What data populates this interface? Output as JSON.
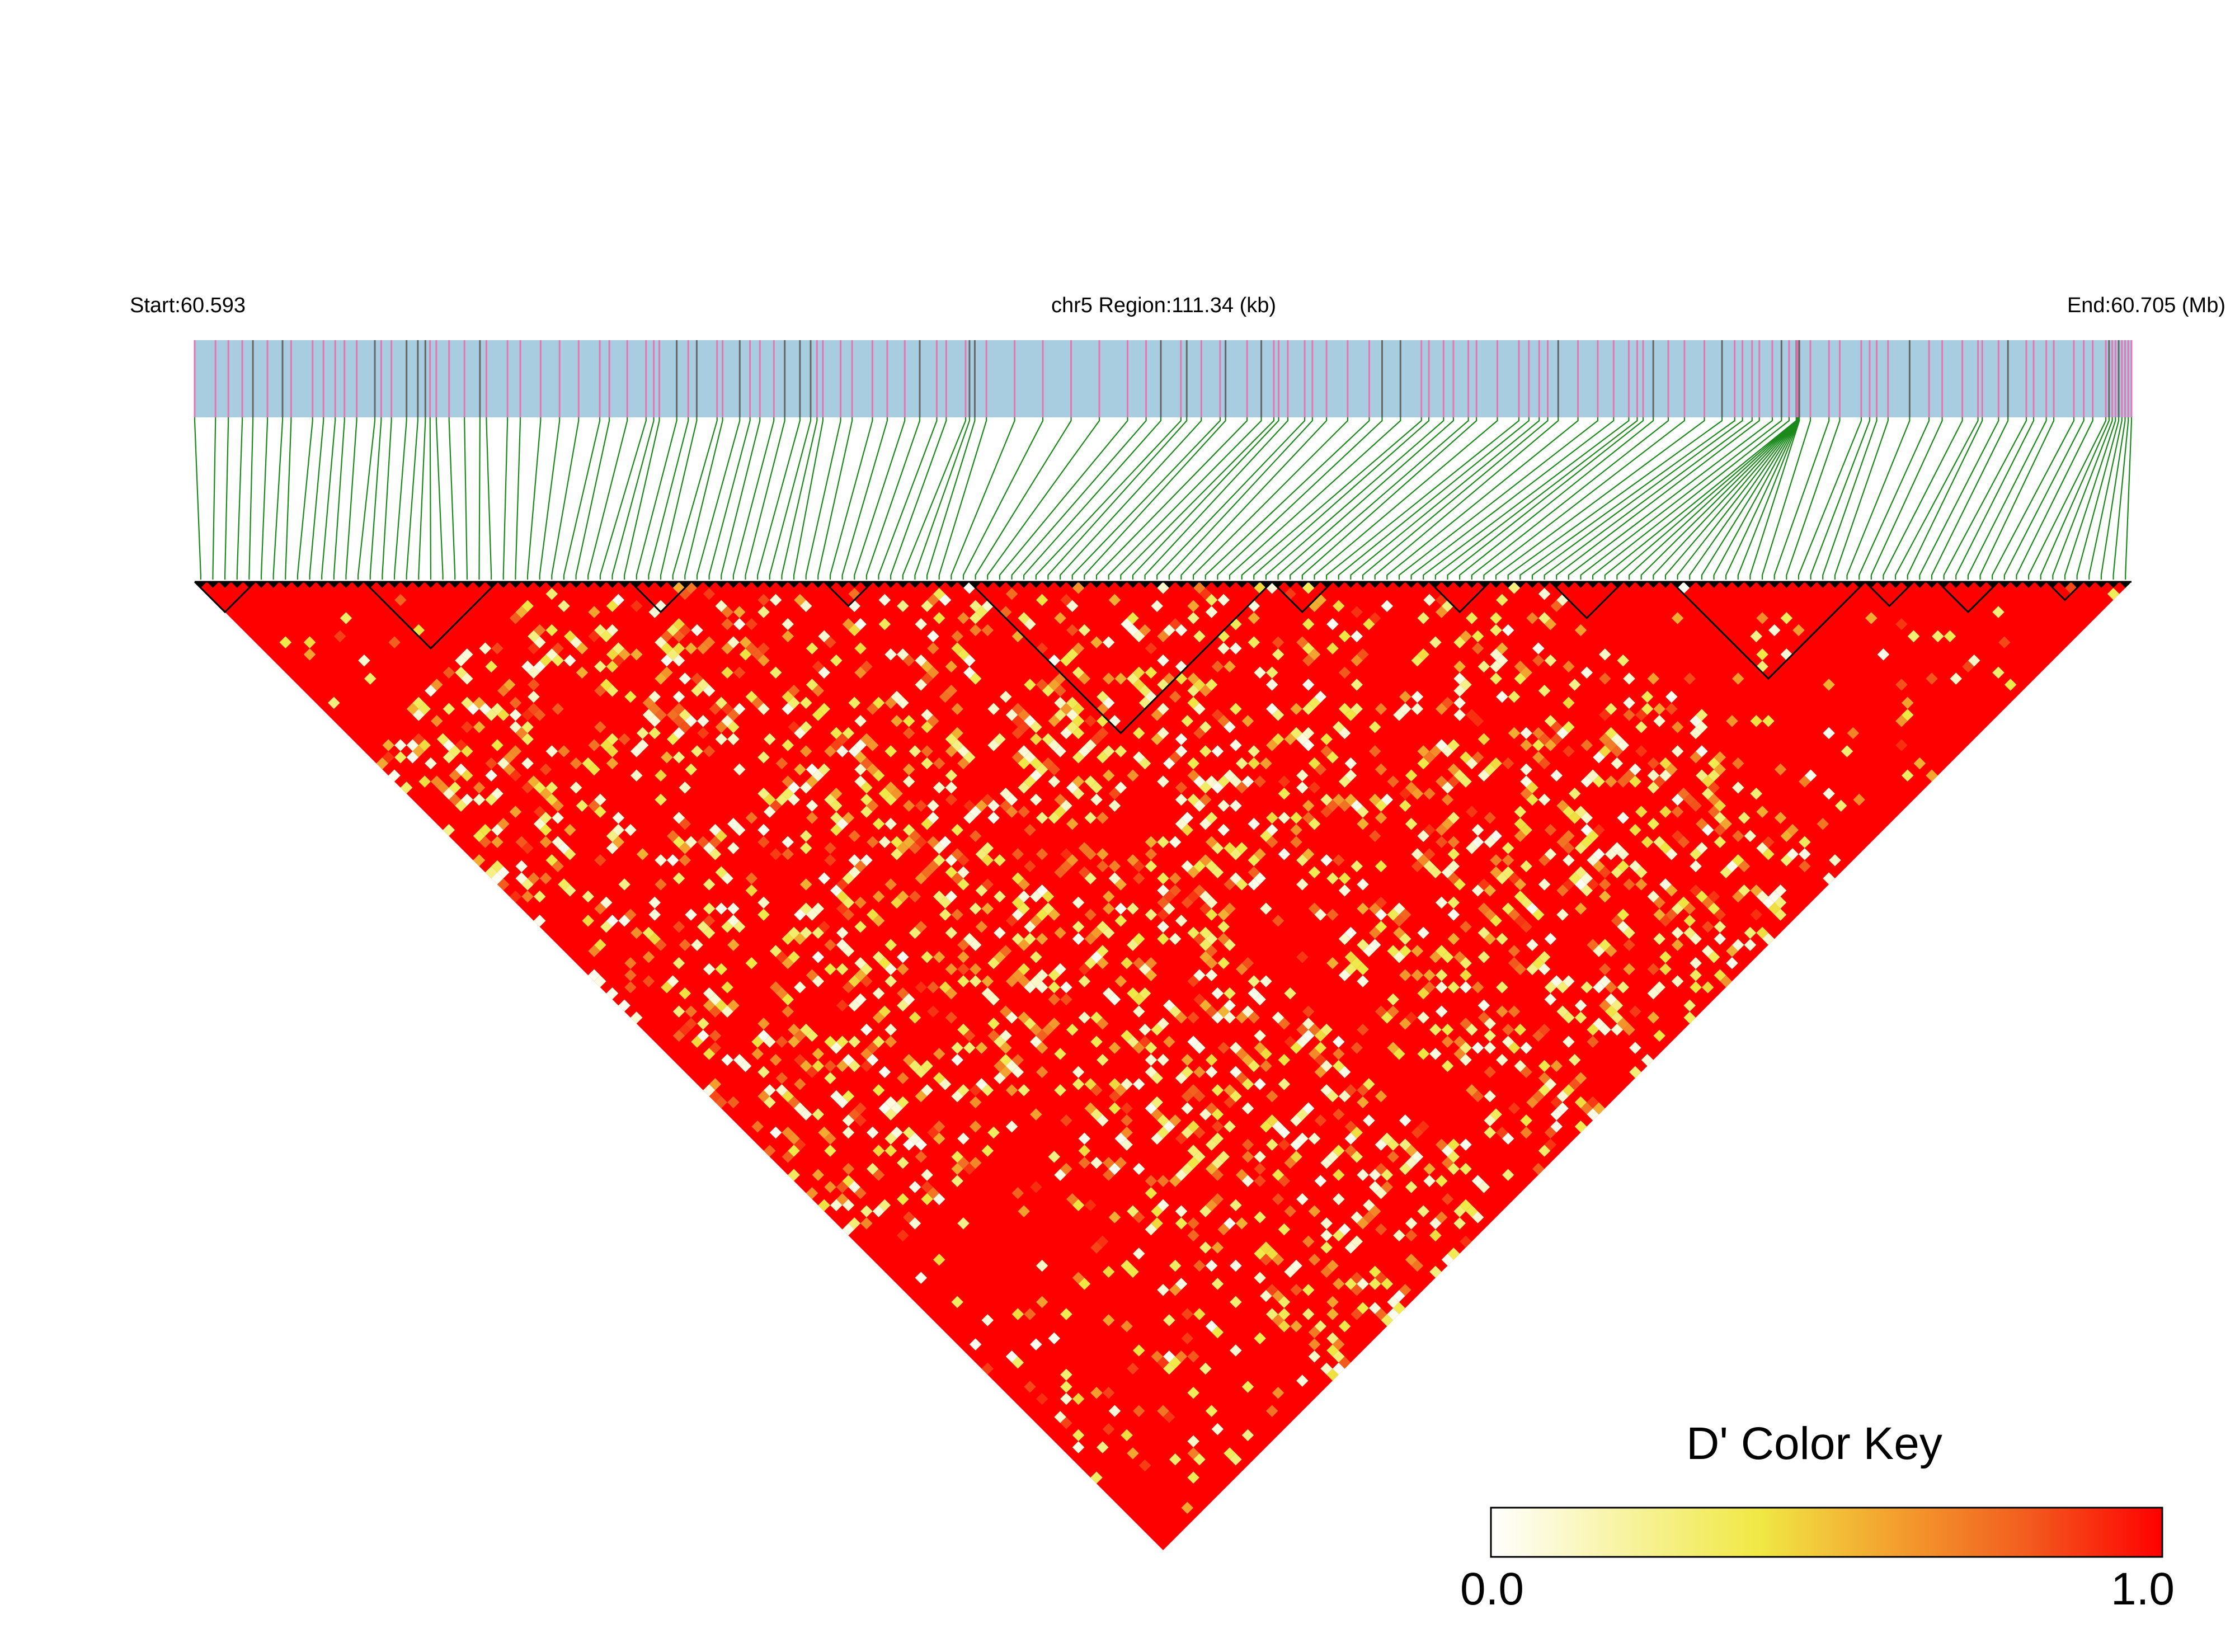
{
  "header": {
    "start_label": "Start:60.593",
    "region_label": "chr5 Region:111.34 (kb)",
    "end_label": "End:60.705 (Mb)"
  },
  "chart_data": {
    "type": "heatmap",
    "subtype": "LD triangle plot (pairwise D')",
    "chromosome": "chr5",
    "region_start_mb": 60.593,
    "region_end_mb": 60.705,
    "region_length_kb": 111.34,
    "approx_snp_count": 160,
    "value_range": [
      0.0,
      1.0
    ],
    "dominant_value": "near 1.0 (red) for most SNP pairs",
    "low_ld_bands": "scattered white/yellow cells concentrated in the centre of the triangle",
    "ld_blocks_outlined": true
  },
  "legend": {
    "title": "D' Color Key",
    "min_label": "0.0",
    "max_label": "1.0",
    "gradient": [
      "#ffffff",
      "#f7f3a0",
      "#f0e844",
      "#f3a02e",
      "#f25c1e",
      "#ff0000"
    ]
  },
  "colors": {
    "gene_track_bg": "#a8cde0",
    "snp_tick_pink": "#e377b3",
    "snp_tick_grey": "#666666",
    "connector_green": "#1a8a1a",
    "ld_high": "#ff0000",
    "ld_low": "#ffffff"
  }
}
